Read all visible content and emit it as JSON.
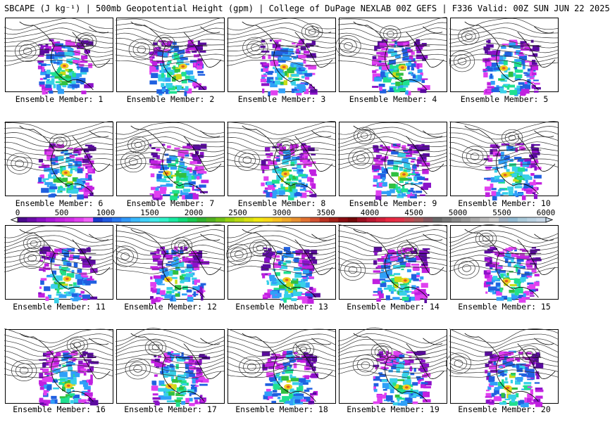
{
  "title": "SBCAPE (J kg⁻¹) | 500mb Geopotential Height (gpm) | College of DuPage NEXLAB 00Z GEFS | F336 Valid: 00Z SUN JUN 22 2025",
  "panels": [
    {
      "label": "Ensemble Member: 1"
    },
    {
      "label": "Ensemble Member: 2"
    },
    {
      "label": "Ensemble Member: 3"
    },
    {
      "label": "Ensemble Member: 4"
    },
    {
      "label": "Ensemble Member: 5"
    },
    {
      "label": "Ensemble Member: 6"
    },
    {
      "label": "Ensemble Member: 7"
    },
    {
      "label": "Ensemble Member: 8"
    },
    {
      "label": "Ensemble Member: 9"
    },
    {
      "label": "Ensemble Member: 10"
    },
    {
      "label": "Ensemble Member: 11"
    },
    {
      "label": "Ensemble Member: 12"
    },
    {
      "label": "Ensemble Member: 13"
    },
    {
      "label": "Ensemble Member: 14"
    },
    {
      "label": "Ensemble Member: 15"
    },
    {
      "label": "Ensemble Member: 16"
    },
    {
      "label": "Ensemble Member: 17"
    },
    {
      "label": "Ensemble Member: 18"
    },
    {
      "label": "Ensemble Member: 19"
    },
    {
      "label": "Ensemble Member: 20"
    }
  ],
  "colorbar": {
    "min": 0,
    "max": 6000,
    "tick_labels": [
      "0",
      "500",
      "1000",
      "1500",
      "2000",
      "2500",
      "3000",
      "3500",
      "4000",
      "4500",
      "5000",
      "5500",
      "6000"
    ],
    "colors": [
      "#4a0a8c",
      "#6a0ba8",
      "#8a10c4",
      "#a818d8",
      "#c022e0",
      "#d02ce8",
      "#e040f0",
      "#f060f8",
      "#1838c8",
      "#2058e0",
      "#2878f0",
      "#3098f8",
      "#38b8fc",
      "#40d0f8",
      "#40e8e8",
      "#30f0c8",
      "#18e8a0",
      "#10d878",
      "#18c850",
      "#30b030",
      "#50b020",
      "#70c018",
      "#98d010",
      "#b8d810",
      "#d8e010",
      "#f0e810",
      "#f8d818",
      "#f8c020",
      "#f0a828",
      "#e89030",
      "#e07030",
      "#d05030",
      "#b83020",
      "#a02018",
      "#880c10",
      "#700808",
      "#981020",
      "#b81830",
      "#d02038",
      "#e82840",
      "#e03048",
      "#c04850",
      "#a05858",
      "#805860",
      "#686868",
      "#787878",
      "#888888",
      "#989898",
      "#a8a8a8",
      "#b8b8b8",
      "#c8c8c8",
      "#a0b0c0",
      "#90b8d0",
      "#a8c8d8",
      "#b8d0e0",
      "#c8d8e8"
    ]
  }
}
